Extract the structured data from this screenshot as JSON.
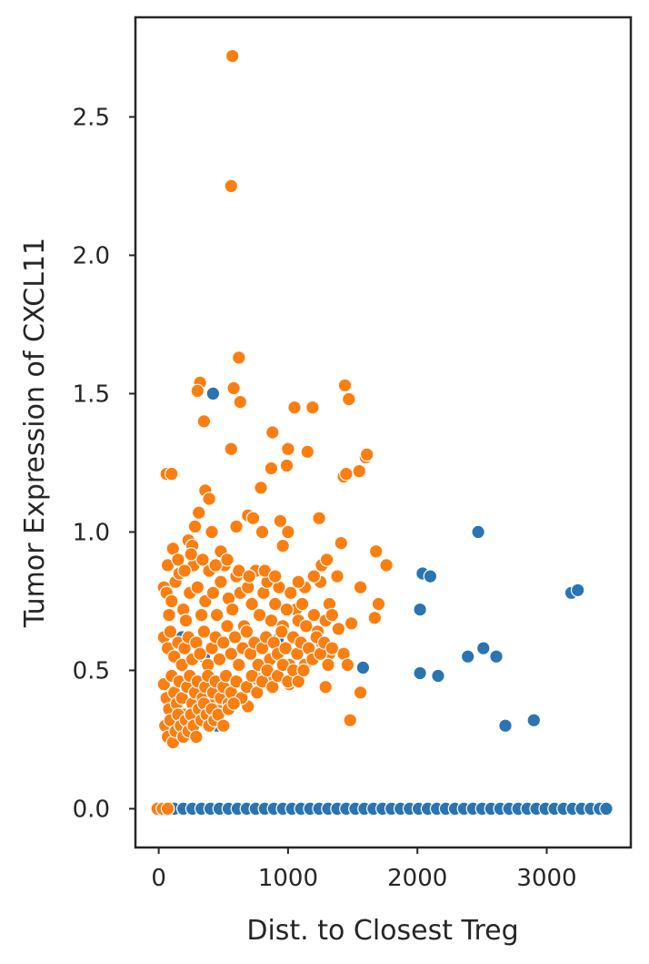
{
  "chart_data": {
    "type": "scatter",
    "xlabel": "Dist. to Closest Treg",
    "ylabel": "Tumor Expression of CXCL11",
    "xlim": [
      -180,
      3650
    ],
    "ylim": [
      -0.14,
      2.86
    ],
    "xticks": [
      0,
      1000,
      2000,
      3000
    ],
    "yticks": [
      0.0,
      0.5,
      1.0,
      1.5,
      2.0,
      2.5
    ],
    "xtick_labels": [
      "0",
      "1000",
      "2000",
      "3000"
    ],
    "ytick_labels": [
      "0.0",
      "0.5",
      "1.0",
      "1.5",
      "2.0",
      "2.5"
    ],
    "grid": false,
    "colors": {
      "series_a": "#2b74b2",
      "series_b": "#fb7e11"
    },
    "series": [
      {
        "color": "#2b74b2",
        "points": [
          [
            50,
            0
          ],
          [
            120,
            0
          ],
          [
            190,
            0
          ],
          [
            260,
            0
          ],
          [
            330,
            0
          ],
          [
            400,
            0
          ],
          [
            470,
            0
          ],
          [
            540,
            0
          ],
          [
            610,
            0
          ],
          [
            680,
            0
          ],
          [
            750,
            0
          ],
          [
            820,
            0
          ],
          [
            890,
            0
          ],
          [
            960,
            0
          ],
          [
            1030,
            0
          ],
          [
            1100,
            0
          ],
          [
            1170,
            0
          ],
          [
            1240,
            0
          ],
          [
            1310,
            0
          ],
          [
            1380,
            0
          ],
          [
            1450,
            0
          ],
          [
            1520,
            0
          ],
          [
            1590,
            0
          ],
          [
            1660,
            0
          ],
          [
            1730,
            0
          ],
          [
            1800,
            0
          ],
          [
            1870,
            0
          ],
          [
            1940,
            0
          ],
          [
            2010,
            0
          ],
          [
            2080,
            0
          ],
          [
            2150,
            0
          ],
          [
            2220,
            0
          ],
          [
            2290,
            0
          ],
          [
            2360,
            0
          ],
          [
            2430,
            0
          ],
          [
            2500,
            0
          ],
          [
            2570,
            0
          ],
          [
            2640,
            0
          ],
          [
            2710,
            0
          ],
          [
            2780,
            0
          ],
          [
            2850,
            0
          ],
          [
            2920,
            0
          ],
          [
            2990,
            0
          ],
          [
            3060,
            0
          ],
          [
            3130,
            0
          ],
          [
            3200,
            0
          ],
          [
            3270,
            0
          ],
          [
            3340,
            0
          ],
          [
            3410,
            0
          ],
          [
            3460,
            0
          ],
          [
            420,
            1.5
          ],
          [
            2470,
            1.0
          ],
          [
            2040,
            0.85
          ],
          [
            2100,
            0.84
          ],
          [
            2020,
            0.72
          ],
          [
            3190,
            0.78
          ],
          [
            3240,
            0.79
          ],
          [
            2020,
            0.49
          ],
          [
            2160,
            0.48
          ],
          [
            2390,
            0.55
          ],
          [
            2510,
            0.58
          ],
          [
            2610,
            0.55
          ],
          [
            1580,
            0.51
          ],
          [
            2680,
            0.3
          ],
          [
            2900,
            0.32
          ],
          [
            450,
            0.3
          ],
          [
            1070,
            0.48
          ],
          [
            920,
            0.61
          ],
          [
            180,
            0.62
          ],
          [
            350,
            0.55
          ]
        ]
      },
      {
        "color": "#fb7e11",
        "points": [
          [
            -10,
            0
          ],
          [
            30,
            0
          ],
          [
            70,
            0
          ],
          [
            570,
            2.72
          ],
          [
            560,
            2.25
          ],
          [
            620,
            1.63
          ],
          [
            320,
            1.54
          ],
          [
            300,
            1.51
          ],
          [
            580,
            1.52
          ],
          [
            630,
            1.47
          ],
          [
            1440,
            1.53
          ],
          [
            1470,
            1.48
          ],
          [
            350,
            1.4
          ],
          [
            1050,
            1.45
          ],
          [
            1190,
            1.45
          ],
          [
            560,
            1.3
          ],
          [
            880,
            1.36
          ],
          [
            1000,
            1.3
          ],
          [
            1150,
            1.29
          ],
          [
            60,
            1.21
          ],
          [
            100,
            1.21
          ],
          [
            870,
            1.23
          ],
          [
            990,
            1.24
          ],
          [
            1430,
            1.2
          ],
          [
            1450,
            1.21
          ],
          [
            1550,
            1.22
          ],
          [
            1600,
            1.27
          ],
          [
            1610,
            1.28
          ],
          [
            360,
            1.15
          ],
          [
            390,
            1.12
          ],
          [
            790,
            1.16
          ],
          [
            690,
            1.06
          ],
          [
            730,
            1.05
          ],
          [
            940,
            1.04
          ],
          [
            1240,
            1.05
          ],
          [
            280,
            1.02
          ],
          [
            310,
            1.07
          ],
          [
            410,
            1.0
          ],
          [
            600,
            1.02
          ],
          [
            800,
            1.0
          ],
          [
            1000,
            1.0
          ],
          [
            110,
            0.94
          ],
          [
            230,
            0.97
          ],
          [
            260,
            0.95
          ],
          [
            480,
            0.93
          ],
          [
            960,
            0.95
          ],
          [
            1680,
            0.93
          ],
          [
            1410,
            0.96
          ],
          [
            1760,
            0.88
          ],
          [
            1560,
            0.8
          ],
          [
            1700,
            0.74
          ],
          [
            1670,
            0.69
          ],
          [
            1490,
            0.67
          ],
          [
            1480,
            0.32
          ],
          [
            1560,
            0.42
          ],
          [
            690,
            0.37
          ],
          [
            1060,
            0.72
          ],
          [
            1130,
            0.8
          ],
          [
            1250,
            0.82
          ],
          [
            1320,
            0.74
          ],
          [
            1390,
            0.65
          ],
          [
            1430,
            0.56
          ],
          [
            1460,
            0.52
          ],
          [
            1290,
            0.44
          ],
          [
            1010,
            0.45
          ],
          [
            880,
            0.48
          ],
          [
            760,
            0.47
          ],
          [
            40,
            0.8
          ],
          [
            60,
            0.78
          ],
          [
            80,
            0.7
          ],
          [
            100,
            0.75
          ],
          [
            130,
            0.82
          ],
          [
            160,
            0.85
          ],
          [
            190,
            0.72
          ],
          [
            210,
            0.68
          ],
          [
            240,
            0.78
          ],
          [
            270,
            0.88
          ],
          [
            300,
            0.8
          ],
          [
            330,
            0.7
          ],
          [
            360,
            0.75
          ],
          [
            390,
            0.86
          ],
          [
            420,
            0.78
          ],
          [
            450,
            0.7
          ],
          [
            480,
            0.82
          ],
          [
            510,
            0.88
          ],
          [
            540,
            0.76
          ],
          [
            570,
            0.72
          ],
          [
            600,
            0.84
          ],
          [
            630,
            0.78
          ],
          [
            660,
            0.66
          ],
          [
            690,
            0.8
          ],
          [
            720,
            0.74
          ],
          [
            750,
            0.86
          ],
          [
            780,
            0.7
          ],
          [
            810,
            0.78
          ],
          [
            840,
            0.82
          ],
          [
            870,
            0.68
          ],
          [
            900,
            0.74
          ],
          [
            930,
            0.8
          ],
          [
            960,
            0.66
          ],
          [
            990,
            0.72
          ],
          [
            1020,
            0.78
          ],
          [
            1050,
            0.62
          ],
          [
            1080,
            0.68
          ],
          [
            1110,
            0.74
          ],
          [
            1140,
            0.66
          ],
          [
            1170,
            0.58
          ],
          [
            1200,
            0.7
          ],
          [
            1230,
            0.64
          ],
          [
            1260,
            0.6
          ],
          [
            1290,
            0.68
          ],
          [
            1320,
            0.56
          ],
          [
            40,
            0.62
          ],
          [
            70,
            0.58
          ],
          [
            90,
            0.64
          ],
          [
            120,
            0.55
          ],
          [
            150,
            0.6
          ],
          [
            180,
            0.52
          ],
          [
            200,
            0.58
          ],
          [
            230,
            0.62
          ],
          [
            260,
            0.54
          ],
          [
            290,
            0.6
          ],
          [
            320,
            0.56
          ],
          [
            350,
            0.64
          ],
          [
            380,
            0.52
          ],
          [
            410,
            0.58
          ],
          [
            440,
            0.62
          ],
          [
            470,
            0.54
          ],
          [
            500,
            0.6
          ],
          [
            530,
            0.66
          ],
          [
            560,
            0.56
          ],
          [
            590,
            0.62
          ],
          [
            620,
            0.52
          ],
          [
            650,
            0.58
          ],
          [
            680,
            0.64
          ],
          [
            710,
            0.56
          ],
          [
            740,
            0.6
          ],
          [
            770,
            0.52
          ],
          [
            800,
            0.58
          ],
          [
            830,
            0.62
          ],
          [
            860,
            0.54
          ],
          [
            890,
            0.6
          ],
          [
            920,
            0.56
          ],
          [
            950,
            0.64
          ],
          [
            980,
            0.58
          ],
          [
            1010,
            0.52
          ],
          [
            1040,
            0.62
          ],
          [
            1070,
            0.56
          ],
          [
            1100,
            0.6
          ],
          [
            1130,
            0.52
          ],
          [
            1160,
            0.58
          ],
          [
            1190,
            0.54
          ],
          [
            1220,
            0.62
          ],
          [
            1250,
            0.56
          ],
          [
            1280,
            0.6
          ],
          [
            1310,
            0.52
          ],
          [
            1340,
            0.58
          ],
          [
            40,
            0.45
          ],
          [
            60,
            0.4
          ],
          [
            80,
            0.36
          ],
          [
            100,
            0.48
          ],
          [
            120,
            0.42
          ],
          [
            140,
            0.38
          ],
          [
            160,
            0.46
          ],
          [
            180,
            0.4
          ],
          [
            200,
            0.34
          ],
          [
            220,
            0.44
          ],
          [
            240,
            0.48
          ],
          [
            260,
            0.38
          ],
          [
            280,
            0.42
          ],
          [
            300,
            0.46
          ],
          [
            320,
            0.36
          ],
          [
            340,
            0.4
          ],
          [
            360,
            0.44
          ],
          [
            380,
            0.48
          ],
          [
            400,
            0.38
          ],
          [
            420,
            0.42
          ],
          [
            440,
            0.46
          ],
          [
            460,
            0.36
          ],
          [
            480,
            0.4
          ],
          [
            500,
            0.44
          ],
          [
            520,
            0.48
          ],
          [
            540,
            0.38
          ],
          [
            560,
            0.42
          ],
          [
            600,
            0.46
          ],
          [
            640,
            0.4
          ],
          [
            680,
            0.44
          ],
          [
            720,
            0.48
          ],
          [
            760,
            0.42
          ],
          [
            800,
            0.46
          ],
          [
            840,
            0.5
          ],
          [
            880,
            0.44
          ],
          [
            920,
            0.48
          ],
          [
            960,
            0.52
          ],
          [
            1000,
            0.46
          ],
          [
            1040,
            0.5
          ],
          [
            1080,
            0.46
          ],
          [
            1120,
            0.5
          ],
          [
            50,
            0.3
          ],
          [
            70,
            0.26
          ],
          [
            90,
            0.32
          ],
          [
            110,
            0.24
          ],
          [
            130,
            0.28
          ],
          [
            150,
            0.34
          ],
          [
            170,
            0.3
          ],
          [
            190,
            0.26
          ],
          [
            210,
            0.32
          ],
          [
            230,
            0.28
          ],
          [
            250,
            0.34
          ],
          [
            270,
            0.3
          ],
          [
            290,
            0.26
          ],
          [
            310,
            0.36
          ],
          [
            330,
            0.32
          ],
          [
            350,
            0.38
          ],
          [
            370,
            0.34
          ],
          [
            390,
            0.3
          ],
          [
            410,
            0.36
          ],
          [
            430,
            0.32
          ],
          [
            460,
            0.34
          ],
          [
            500,
            0.3
          ],
          [
            540,
            0.36
          ],
          [
            580,
            0.38
          ],
          [
            70,
            0.88
          ],
          [
            150,
            0.9
          ],
          [
            200,
            0.86
          ],
          [
            250,
            0.92
          ],
          [
            340,
            0.9
          ],
          [
            440,
            0.88
          ],
          [
            530,
            0.9
          ],
          [
            620,
            0.86
          ],
          [
            700,
            0.84
          ],
          [
            820,
            0.86
          ],
          [
            900,
            0.84
          ],
          [
            1080,
            0.82
          ],
          [
            1200,
            0.84
          ],
          [
            1260,
            0.88
          ],
          [
            1300,
            0.9
          ],
          [
            1380,
            0.84
          ],
          [
            1340,
            0.7
          ]
        ]
      }
    ]
  }
}
